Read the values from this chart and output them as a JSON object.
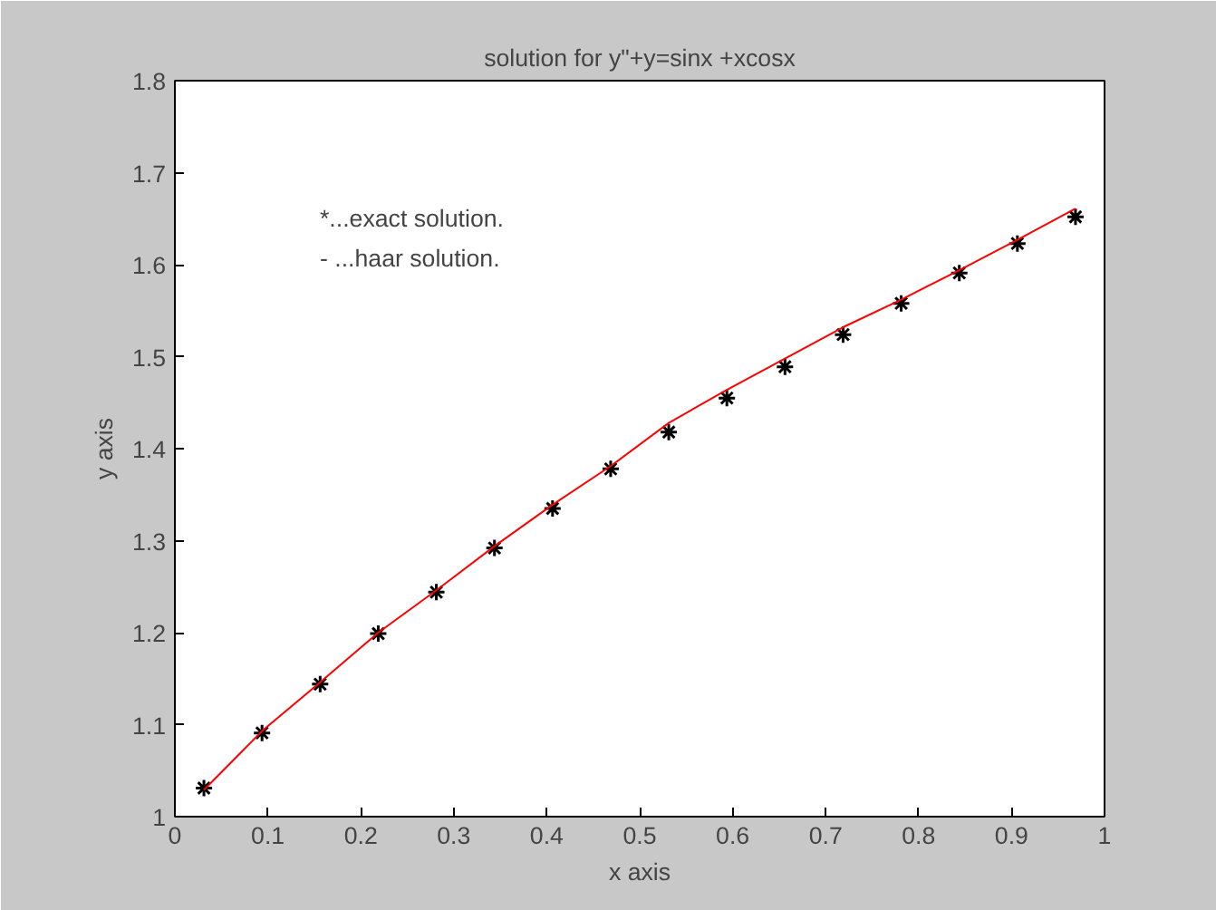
{
  "chart_data": {
    "type": "line",
    "title": "solution for y\"+y=sinx +xcosx",
    "xlabel": "x axis",
    "ylabel": "y axis",
    "x": [
      0.03125,
      0.09375,
      0.15625,
      0.21875,
      0.28125,
      0.34375,
      0.40625,
      0.46875,
      0.53125,
      0.59375,
      0.65625,
      0.71875,
      0.78125,
      0.84375,
      0.90625,
      0.96875
    ],
    "series": [
      {
        "type": "scatter",
        "marker": "cross",
        "color": "#000000",
        "values": [
          1.031,
          1.091,
          1.144,
          1.199,
          1.244,
          1.292,
          1.335,
          1.378,
          1.418,
          1.455,
          1.489,
          1.524,
          1.558,
          1.591,
          1.623,
          1.652
        ]
      },
      {
        "marker": "none",
        "line_style": "solid",
        "color": "#ff0000",
        "values": [
          1.029,
          1.093,
          1.146,
          1.2,
          1.246,
          1.294,
          1.339,
          1.381,
          1.428,
          1.464,
          1.498,
          1.532,
          1.562,
          1.594,
          1.627,
          1.661
        ]
      }
    ],
    "annotations": [
      "*...exact solution.",
      "- ...haar solution."
    ],
    "xlim": [
      0,
      1
    ],
    "ylim": [
      1,
      1.8
    ],
    "xticks": [
      0,
      0.1,
      0.2,
      0.3,
      0.4,
      0.5,
      0.6,
      0.7,
      0.8,
      0.9,
      1
    ],
    "yticks": [
      1,
      1.1,
      1.2,
      1.3,
      1.4,
      1.5,
      1.6,
      1.7,
      1.8
    ]
  }
}
